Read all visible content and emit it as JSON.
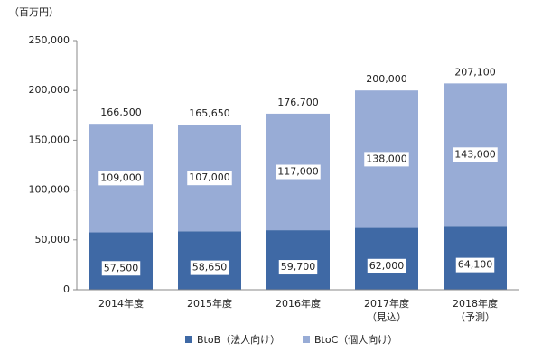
{
  "chart_data": {
    "type": "stacked_bar",
    "y_axis_label": "（百万円）",
    "categories": [
      "2014年度",
      "2015年度",
      "2016年度",
      "2017年度\n（見込）",
      "2018年度\n（予測）"
    ],
    "series": [
      {
        "name": "BtoB（法人向け）",
        "color": "#3f69a5",
        "values": [
          57500,
          58650,
          59700,
          62000,
          64100
        ],
        "value_labels": [
          "57,500",
          "58,650",
          "59,700",
          "62,000",
          "64,100"
        ]
      },
      {
        "name": "BtoC（個人向け）",
        "color": "#98acd6",
        "values": [
          109000,
          107000,
          117000,
          138000,
          143000
        ],
        "value_labels": [
          "109,000",
          "107,000",
          "117,000",
          "138,000",
          "143,000"
        ]
      }
    ],
    "totals": [
      166500,
      165650,
      176700,
      200000,
      207100
    ],
    "total_labels": [
      "166,500",
      "165,650",
      "176,700",
      "200,000",
      "207,100"
    ],
    "ylim": [
      0,
      250000
    ],
    "yticks": [
      0,
      {
        "value": 50000,
        "label": "50,000"
      },
      {
        "value": 100000,
        "label": "100,000"
      },
      {
        "value": 150000,
        "label": "150,000"
      },
      {
        "value": 200000,
        "label": "200,000"
      },
      {
        "value": 250000,
        "label": "250,000"
      }
    ],
    "legend": "bottom"
  }
}
